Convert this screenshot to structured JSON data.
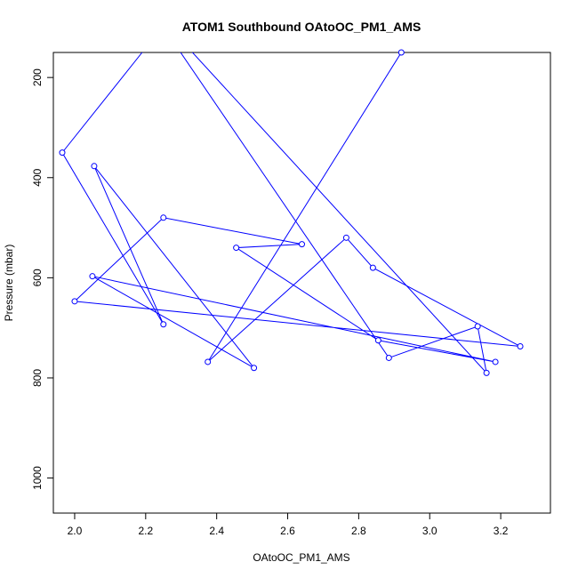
{
  "chart_data": {
    "type": "line",
    "title": "ATOM1 Southbound OAtoOC_PM1_AMS",
    "xlabel": "OAtoOC_PM1_AMS",
    "ylabel": "Pressure (mbar)",
    "xlim": [
      1.94,
      3.34
    ],
    "ylim": [
      1070,
      150
    ],
    "y_reversed": true,
    "grid": false,
    "legend": "none",
    "x_ticks": [
      2.0,
      2.2,
      2.4,
      2.6,
      2.8,
      3.0,
      3.2
    ],
    "x_tick_labels": [
      "2.0",
      "2.2",
      "2.4",
      "2.6",
      "2.8",
      "3.0",
      "3.2"
    ],
    "y_ticks": [
      200,
      400,
      600,
      800,
      1000
    ],
    "y_tick_labels": [
      "200",
      "400",
      "600",
      "800",
      "1000"
    ],
    "series_color": "#0000ff",
    "series": [
      {
        "points_before": [
          [
            2.28,
            100
          ],
          [
            2.19,
            150
          ]
        ],
        "points": [
          [
            1.965,
            350
          ],
          [
            2.25,
            693
          ],
          [
            2.055,
            377
          ],
          [
            2.505,
            780
          ],
          [
            2.05,
            597
          ],
          [
            3.185,
            768
          ],
          [
            2.855,
            725
          ],
          [
            2.455,
            540
          ],
          [
            2.64,
            533
          ],
          [
            2.25,
            480
          ],
          [
            2.0,
            647
          ],
          [
            3.255,
            737
          ],
          [
            2.84,
            580
          ],
          [
            2.765,
            520
          ],
          [
            2.375,
            768
          ],
          [
            2.92,
            150
          ]
        ],
        "points_after": [
          [
            3.1,
            -180
          ]
        ]
      }
    ],
    "extra_segments": [
      {
        "points_before": [
          [
            2.26,
            110
          ]
        ],
        "points": [
          [
            2.885,
            760
          ],
          [
            3.135,
            697
          ],
          [
            3.16,
            790
          ]
        ],
        "points_after": [
          [
            2.28,
            110
          ]
        ]
      }
    ]
  }
}
